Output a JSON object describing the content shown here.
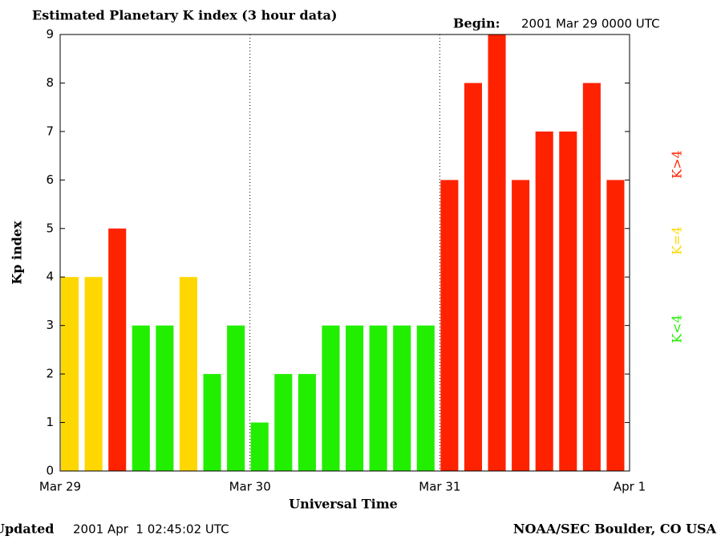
{
  "chart_data": {
    "type": "bar",
    "title": "Estimated Planetary K index (3 hour data)",
    "begin_label": "Begin:",
    "begin_value": "2001 Mar 29 0000 UTC",
    "ylabel": "Kp index",
    "xlabel": "Universal Time",
    "xticks": [
      "Mar 29",
      "Mar 30",
      "Mar 31",
      "Apr 1"
    ],
    "values": [
      4,
      4,
      5,
      3,
      3,
      4,
      2,
      3,
      1,
      2,
      2,
      3,
      3,
      3,
      3,
      3,
      6,
      8,
      9,
      6,
      7,
      7,
      8,
      6
    ],
    "colors": [
      "#ffd700",
      "#ffd700",
      "#ff2200",
      "#22ee00",
      "#22ee00",
      "#ffd700",
      "#22ee00",
      "#22ee00",
      "#22ee00",
      "#22ee00",
      "#22ee00",
      "#22ee00",
      "#22ee00",
      "#22ee00",
      "#22ee00",
      "#22ee00",
      "#ff2200",
      "#ff2200",
      "#ff2200",
      "#ff2200",
      "#ff2200",
      "#ff2200",
      "#ff2200",
      "#ff2200"
    ],
    "ylim": [
      0,
      9
    ],
    "yticks": [
      0,
      1,
      2,
      3,
      4,
      5,
      6,
      7,
      8,
      9
    ],
    "legend": [
      {
        "name": "K<4",
        "color": "#22ee00"
      },
      {
        "name": "K=4",
        "color": "#ffd700"
      },
      {
        "name": "K>4",
        "color": "#ff2200"
      }
    ],
    "footer_left_label": "Updated",
    "footer_left_value": "2001 Apr  1 02:45:02 UTC",
    "footer_right": "NOAA/SEC Boulder, CO USA"
  }
}
